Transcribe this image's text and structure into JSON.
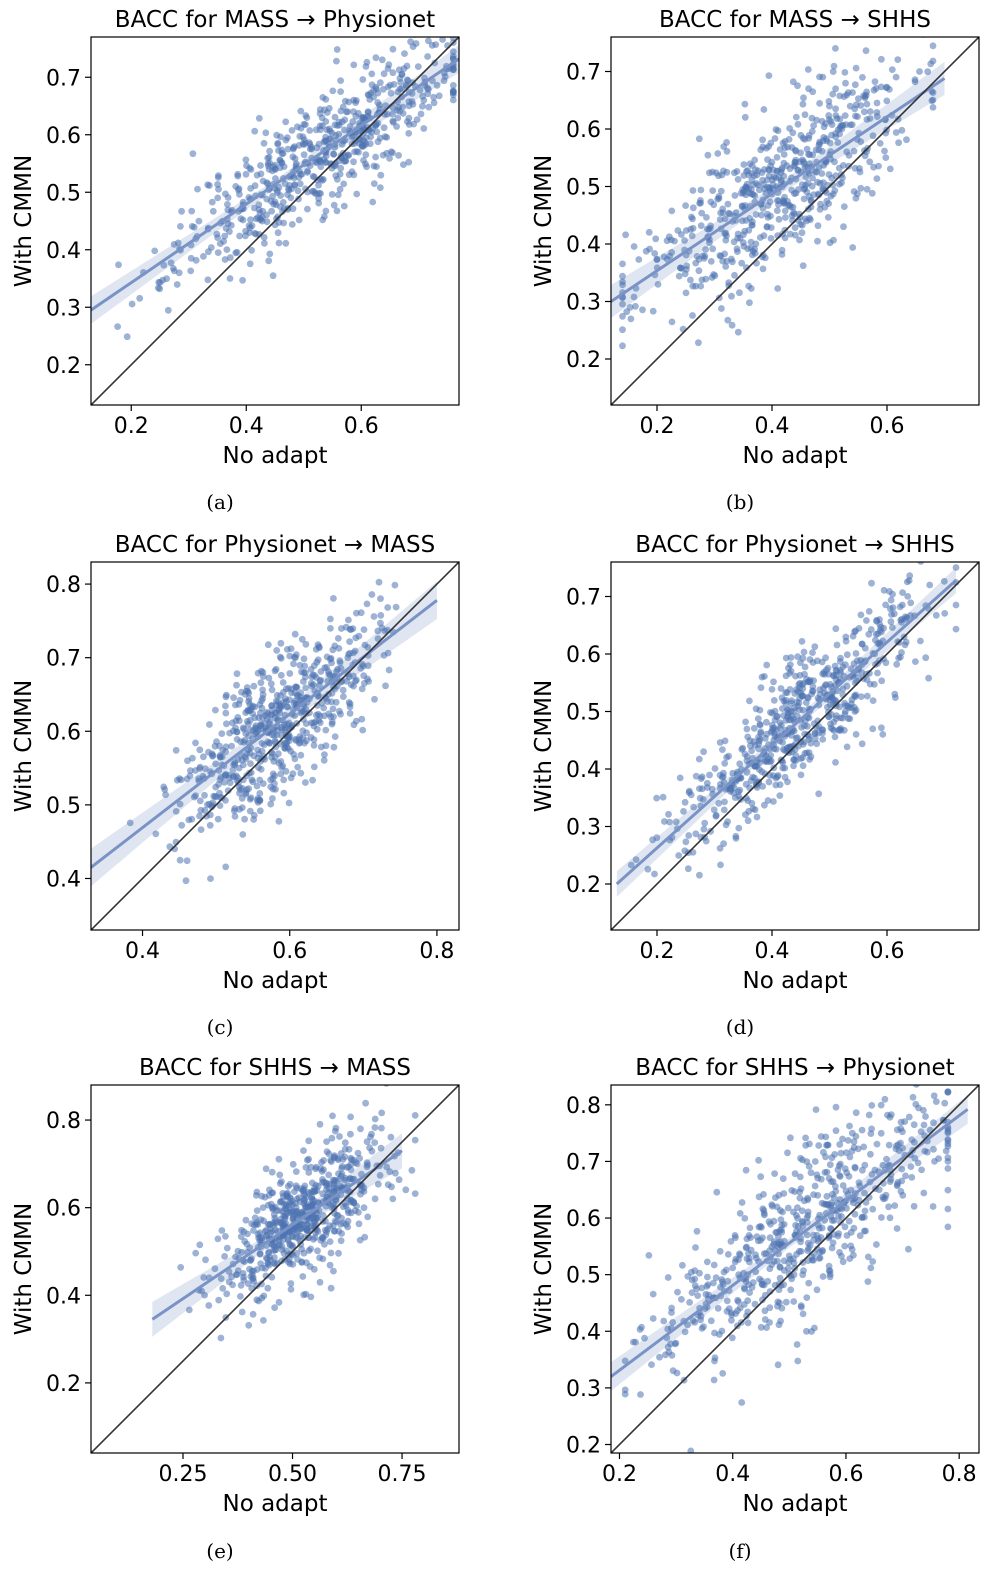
{
  "chart_data": [
    {
      "id": "a",
      "type": "scatter",
      "title": "BACC for MASS  →  Physionet",
      "xlabel": "No adapt",
      "ylabel": "With CMMN",
      "caption": "(a)",
      "xlim": [
        0.13,
        0.77
      ],
      "ylim": [
        0.13,
        0.77
      ],
      "xticks": [
        {
          "v": 0.2,
          "label": "0.2"
        },
        {
          "v": 0.4,
          "label": "0.4"
        },
        {
          "v": 0.6,
          "label": "0.6"
        }
      ],
      "yticks": [
        {
          "v": 0.2,
          "label": "0.2"
        },
        {
          "v": 0.3,
          "label": "0.3"
        },
        {
          "v": 0.4,
          "label": "0.4"
        },
        {
          "v": 0.5,
          "label": "0.5"
        },
        {
          "v": 0.6,
          "label": "0.6"
        },
        {
          "v": 0.7,
          "label": "0.7"
        }
      ],
      "fit": {
        "x0": 0.13,
        "y0": 0.295,
        "x1": 0.77,
        "y1": 0.732,
        "band": 0.015
      },
      "cloud": {
        "n": 620,
        "xmean": 0.53,
        "xsd": 0.125,
        "xmin": 0.15,
        "xmax": 0.76,
        "resid_sd": 0.052,
        "seed": 11
      }
    },
    {
      "id": "b",
      "type": "scatter",
      "title": "BACC for MASS  →  SHHS",
      "xlabel": "No adapt",
      "ylabel": "With CMMN",
      "caption": "(b)",
      "xlim": [
        0.12,
        0.76
      ],
      "ylim": [
        0.12,
        0.76
      ],
      "xticks": [
        {
          "v": 0.2,
          "label": "0.2"
        },
        {
          "v": 0.4,
          "label": "0.4"
        },
        {
          "v": 0.6,
          "label": "0.6"
        }
      ],
      "yticks": [
        {
          "v": 0.2,
          "label": "0.2"
        },
        {
          "v": 0.3,
          "label": "0.3"
        },
        {
          "v": 0.4,
          "label": "0.4"
        },
        {
          "v": 0.5,
          "label": "0.5"
        },
        {
          "v": 0.6,
          "label": "0.6"
        },
        {
          "v": 0.7,
          "label": "0.7"
        }
      ],
      "fit": {
        "x0": 0.12,
        "y0": 0.3,
        "x1": 0.7,
        "y1": 0.688,
        "band": 0.018
      },
      "cloud": {
        "n": 620,
        "xmean": 0.4,
        "xsd": 0.12,
        "xmin": 0.14,
        "xmax": 0.68,
        "resid_sd": 0.068,
        "seed": 23
      }
    },
    {
      "id": "c",
      "type": "scatter",
      "title": "BACC for Physionet  →  MASS",
      "xlabel": "No adapt",
      "ylabel": "With CMMN",
      "caption": "(c)",
      "xlim": [
        0.33,
        0.83
      ],
      "ylim": [
        0.33,
        0.83
      ],
      "xticks": [
        {
          "v": 0.4,
          "label": "0.4"
        },
        {
          "v": 0.6,
          "label": "0.6"
        },
        {
          "v": 0.8,
          "label": "0.8"
        }
      ],
      "yticks": [
        {
          "v": 0.4,
          "label": "0.4"
        },
        {
          "v": 0.5,
          "label": "0.5"
        },
        {
          "v": 0.6,
          "label": "0.6"
        },
        {
          "v": 0.7,
          "label": "0.7"
        },
        {
          "v": 0.8,
          "label": "0.8"
        }
      ],
      "fit": {
        "x0": 0.33,
        "y0": 0.415,
        "x1": 0.8,
        "y1": 0.778,
        "band": 0.016
      },
      "cloud": {
        "n": 620,
        "xmean": 0.585,
        "xsd": 0.065,
        "xmin": 0.35,
        "xmax": 0.8,
        "resid_sd": 0.048,
        "seed": 37
      }
    },
    {
      "id": "d",
      "type": "scatter",
      "title": "BACC for Physionet  →  SHHS",
      "xlabel": "No adapt",
      "ylabel": "With CMMN",
      "caption": "(d)",
      "xlim": [
        0.12,
        0.76
      ],
      "ylim": [
        0.12,
        0.76
      ],
      "xticks": [
        {
          "v": 0.2,
          "label": "0.2"
        },
        {
          "v": 0.4,
          "label": "0.4"
        },
        {
          "v": 0.6,
          "label": "0.6"
        }
      ],
      "yticks": [
        {
          "v": 0.2,
          "label": "0.2"
        },
        {
          "v": 0.3,
          "label": "0.3"
        },
        {
          "v": 0.4,
          "label": "0.4"
        },
        {
          "v": 0.5,
          "label": "0.5"
        },
        {
          "v": 0.6,
          "label": "0.6"
        },
        {
          "v": 0.7,
          "label": "0.7"
        }
      ],
      "fit": {
        "x0": 0.13,
        "y0": 0.2,
        "x1": 0.72,
        "y1": 0.728,
        "band": 0.014
      },
      "cloud": {
        "n": 620,
        "xmean": 0.45,
        "xsd": 0.11,
        "xmin": 0.15,
        "xmax": 0.72,
        "resid_sd": 0.055,
        "seed": 41
      }
    },
    {
      "id": "e",
      "type": "scatter",
      "title": "BACC for SHHS  →  MASS",
      "xlabel": "No adapt",
      "ylabel": "With CMMN",
      "caption": "(e)",
      "xlim": [
        0.04,
        0.88
      ],
      "ylim": [
        0.04,
        0.88
      ],
      "xticks": [
        {
          "v": 0.25,
          "label": "0.25"
        },
        {
          "v": 0.5,
          "label": "0.50"
        },
        {
          "v": 0.75,
          "label": "0.75"
        }
      ],
      "yticks": [
        {
          "v": 0.2,
          "label": "0.2"
        },
        {
          "v": 0.4,
          "label": "0.4"
        },
        {
          "v": 0.6,
          "label": "0.6"
        },
        {
          "v": 0.8,
          "label": "0.8"
        }
      ],
      "fit": {
        "x0": 0.18,
        "y0": 0.345,
        "x1": 0.75,
        "y1": 0.73,
        "band": 0.025
      },
      "cloud": {
        "n": 620,
        "xmean": 0.53,
        "xsd": 0.1,
        "xmin": 0.18,
        "xmax": 0.78,
        "resid_sd": 0.068,
        "seed": 53
      }
    },
    {
      "id": "f",
      "type": "scatter",
      "title": "BACC for SHHS  →  Physionet",
      "xlabel": "No adapt",
      "ylabel": "With CMMN",
      "caption": "(f)",
      "xlim": [
        0.185,
        0.835
      ],
      "ylim": [
        0.185,
        0.835
      ],
      "xticks": [
        {
          "v": 0.2,
          "label": "0.2"
        },
        {
          "v": 0.4,
          "label": "0.4"
        },
        {
          "v": 0.6,
          "label": "0.6"
        },
        {
          "v": 0.8,
          "label": "0.8"
        }
      ],
      "yticks": [
        {
          "v": 0.2,
          "label": "0.2"
        },
        {
          "v": 0.3,
          "label": "0.3"
        },
        {
          "v": 0.4,
          "label": "0.4"
        },
        {
          "v": 0.5,
          "label": "0.5"
        },
        {
          "v": 0.6,
          "label": "0.6"
        },
        {
          "v": 0.7,
          "label": "0.7"
        },
        {
          "v": 0.8,
          "label": "0.8"
        }
      ],
      "fit": {
        "x0": 0.185,
        "y0": 0.32,
        "x1": 0.815,
        "y1": 0.792,
        "band": 0.016
      },
      "cloud": {
        "n": 620,
        "xmean": 0.52,
        "xsd": 0.13,
        "xmin": 0.21,
        "xmax": 0.78,
        "resid_sd": 0.07,
        "seed": 67
      }
    }
  ]
}
